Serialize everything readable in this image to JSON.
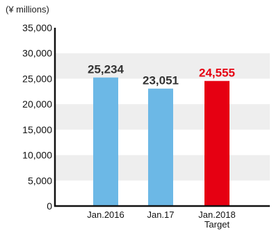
{
  "unit_label": "(¥ millions)",
  "chart_data": {
    "type": "bar",
    "title": "",
    "xlabel": "",
    "ylabel": "(¥ millions)",
    "ylim": [
      0,
      35000
    ],
    "yticks": [
      "0",
      "5,000",
      "10,000",
      "15,000",
      "20,000",
      "25,000",
      "30,000",
      "35,000"
    ],
    "ytick_values": [
      0,
      5000,
      10000,
      15000,
      20000,
      25000,
      30000,
      35000
    ],
    "categories": [
      "Jan.2016",
      "Jan.17",
      "Jan.2018"
    ],
    "category_sublabels": [
      "",
      "",
      "Target"
    ],
    "values": [
      25234,
      23051,
      24555
    ],
    "value_labels": [
      "25,234",
      "23,051",
      "24,555"
    ],
    "bar_colors": [
      "#6cb8e6",
      "#6cb8e6",
      "#e60012"
    ],
    "value_label_colors": [
      "#333333",
      "#333333",
      "#e60012"
    ],
    "grid_band_color": "#eeeeee",
    "grid": "alternating-bands"
  }
}
